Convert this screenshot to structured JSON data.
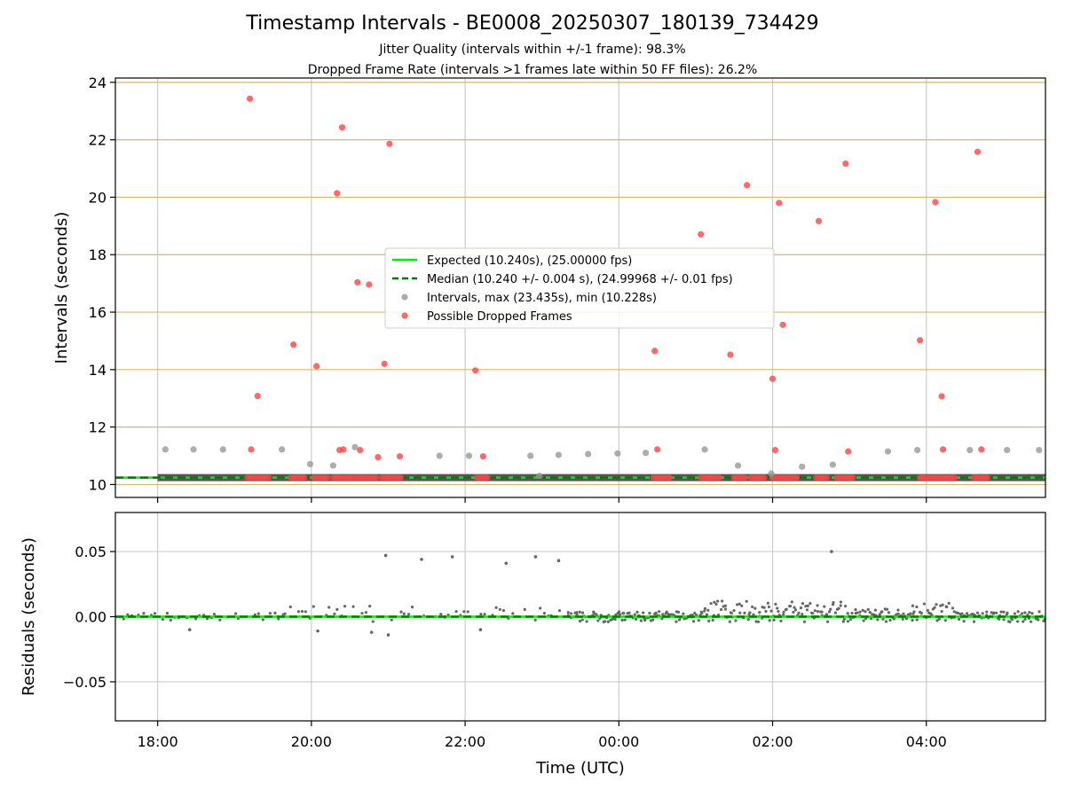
{
  "chart_data": {
    "title": "Timestamp Intervals - BE0008_20250307_180139_734429",
    "subtitle_lines": [
      "Jitter Quality (intervals within +/-1 frame): 98.3%",
      "Dropped Frame Rate (intervals >1 frames late within 50 FF files): 26.2%"
    ],
    "xlabel": "Time (UTC)",
    "xlim": [
      "17:27",
      "05:33"
    ],
    "x_ticks": [
      "18:00",
      "20:00",
      "22:00",
      "00:00",
      "02:00",
      "04:00"
    ],
    "colors": {
      "expected": "#00ee00",
      "median": "#007a00",
      "intervals": "#999999",
      "dropped": "#ff4444",
      "residuals": "#666666",
      "hgrid_top": "#d8b86a",
      "grid": "#cccccc"
    },
    "panels": [
      {
        "type": "scatter",
        "ylabel": "Intervals (seconds)",
        "ylim": [
          9.55,
          24.15
        ],
        "y_ticks": [
          10,
          12,
          14,
          16,
          18,
          20,
          22,
          24
        ],
        "y_tick_labels": [
          "10",
          "12",
          "14",
          "16",
          "18",
          "20",
          "22",
          "24"
        ],
        "legend_position": "center",
        "legend": [
          "Expected (10.240s), (25.00000 fps)",
          "Median (10.240 +/- 0.004 s), (24.99968 +/- 0.01 fps)",
          "Intervals, max (23.435s), min (10.228s)",
          "Possible Dropped Frames"
        ],
        "expected": 10.24,
        "median": 10.24,
        "intervals": [
          {
            "x": "18:06",
            "y": 11.22
          },
          {
            "x": "18:28",
            "y": 11.22
          },
          {
            "x": "18:51",
            "y": 11.22
          },
          {
            "x": "19:37",
            "y": 11.22
          },
          {
            "x": "19:59",
            "y": 10.71
          },
          {
            "x": "20:17",
            "y": 10.66
          },
          {
            "x": "20:34",
            "y": 11.3
          },
          {
            "x": "21:40",
            "y": 11.0
          },
          {
            "x": "22:03",
            "y": 11.0
          },
          {
            "x": "22:51",
            "y": 11.0
          },
          {
            "x": "22:58",
            "y": 10.3
          },
          {
            "x": "23:13",
            "y": 11.03
          },
          {
            "x": "23:36",
            "y": 11.06
          },
          {
            "x": "23:59",
            "y": 11.08
          },
          {
            "x": "00:21",
            "y": 11.1
          },
          {
            "x": "01:07",
            "y": 11.22
          },
          {
            "x": "01:33",
            "y": 10.66
          },
          {
            "x": "01:59",
            "y": 10.38
          },
          {
            "x": "02:23",
            "y": 10.62
          },
          {
            "x": "02:47",
            "y": 10.69
          },
          {
            "x": "03:30",
            "y": 11.15
          },
          {
            "x": "03:53",
            "y": 11.2
          },
          {
            "x": "04:34",
            "y": 11.2
          },
          {
            "x": "05:03",
            "y": 11.2
          },
          {
            "x": "05:28",
            "y": 11.2
          }
        ],
        "dropped": [
          {
            "x": "19:12",
            "y": 23.43
          },
          {
            "x": "19:18",
            "y": 13.08
          },
          {
            "x": "19:13",
            "y": 11.22
          },
          {
            "x": "19:46",
            "y": 14.87
          },
          {
            "x": "20:04",
            "y": 14.12
          },
          {
            "x": "20:20",
            "y": 20.14
          },
          {
            "x": "20:24",
            "y": 22.43
          },
          {
            "x": "20:22",
            "y": 11.2
          },
          {
            "x": "20:25",
            "y": 11.22
          },
          {
            "x": "20:36",
            "y": 17.04
          },
          {
            "x": "20:45",
            "y": 16.96
          },
          {
            "x": "20:38",
            "y": 11.2
          },
          {
            "x": "20:52",
            "y": 10.95
          },
          {
            "x": "20:57",
            "y": 14.2
          },
          {
            "x": "21:01",
            "y": 21.86
          },
          {
            "x": "21:09",
            "y": 10.98
          },
          {
            "x": "22:08",
            "y": 13.97
          },
          {
            "x": "22:14",
            "y": 10.98
          },
          {
            "x": "00:28",
            "y": 14.65
          },
          {
            "x": "00:30",
            "y": 11.22
          },
          {
            "x": "01:04",
            "y": 18.71
          },
          {
            "x": "01:27",
            "y": 14.52
          },
          {
            "x": "01:40",
            "y": 20.42
          },
          {
            "x": "02:00",
            "y": 13.68
          },
          {
            "x": "02:02",
            "y": 11.2
          },
          {
            "x": "02:05",
            "y": 19.8
          },
          {
            "x": "02:08",
            "y": 15.56
          },
          {
            "x": "02:36",
            "y": 19.17
          },
          {
            "x": "02:57",
            "y": 21.17
          },
          {
            "x": "02:59",
            "y": 11.15
          },
          {
            "x": "03:55",
            "y": 15.02
          },
          {
            "x": "04:07",
            "y": 19.83
          },
          {
            "x": "04:12",
            "y": 13.07
          },
          {
            "x": "04:13",
            "y": 11.22
          },
          {
            "x": "04:40",
            "y": 21.58
          },
          {
            "x": "04:43",
            "y": 11.22
          }
        ],
        "dropped_clusters": [
          [
            "19:10",
            "19:28"
          ],
          [
            "19:44",
            "19:56"
          ],
          [
            "20:02",
            "20:14"
          ],
          [
            "20:17",
            "20:32"
          ],
          [
            "20:34",
            "20:52"
          ],
          [
            "20:55",
            "21:10"
          ],
          [
            "22:09",
            "22:18"
          ],
          [
            "00:27",
            "00:40"
          ],
          [
            "01:04",
            "01:20"
          ],
          [
            "01:30",
            "01:40"
          ],
          [
            "01:43",
            "01:55"
          ],
          [
            "02:00",
            "02:20"
          ],
          [
            "02:34",
            "02:44"
          ],
          [
            "02:50",
            "03:03"
          ],
          [
            "03:55",
            "04:23"
          ],
          [
            "04:37",
            "04:48"
          ]
        ]
      },
      {
        "type": "scatter",
        "ylabel": "Residuals (seconds)",
        "ylim": [
          -0.08,
          0.08
        ],
        "y_ticks": [
          -0.05,
          0.0,
          0.05
        ],
        "y_tick_labels": [
          "−0.05",
          "0.00",
          "0.05"
        ],
        "outliers": [
          {
            "x": "20:58",
            "y": 0.047
          },
          {
            "x": "21:26",
            "y": 0.044
          },
          {
            "x": "21:50",
            "y": 0.046
          },
          {
            "x": "22:32",
            "y": 0.041
          },
          {
            "x": "22:55",
            "y": 0.046
          },
          {
            "x": "23:13",
            "y": 0.043
          },
          {
            "x": "02:46",
            "y": 0.05
          },
          {
            "x": "18:25",
            "y": -0.01
          },
          {
            "x": "20:05",
            "y": -0.011
          },
          {
            "x": "20:47",
            "y": -0.012
          },
          {
            "x": "21:00",
            "y": -0.014
          },
          {
            "x": "22:12",
            "y": -0.01
          }
        ],
        "level_segments": [
          {
            "from": "17:30",
            "to": "19:40",
            "level": 0.0,
            "spread": 0.003
          },
          {
            "from": "19:40",
            "to": "21:00",
            "level": 0.006,
            "spread": 0.004
          },
          {
            "from": "21:00",
            "to": "23:20",
            "level": 0.004,
            "spread": 0.004
          },
          {
            "from": "23:20",
            "to": "01:05",
            "level": 0.0,
            "spread": 0.004
          },
          {
            "from": "01:05",
            "to": "03:00",
            "level": 0.008,
            "spread": 0.004
          },
          {
            "from": "03:00",
            "to": "03:50",
            "level": 0.002,
            "spread": 0.004
          },
          {
            "from": "03:50",
            "to": "04:20",
            "level": 0.007,
            "spread": 0.004
          },
          {
            "from": "04:20",
            "to": "05:33",
            "level": 0.0,
            "spread": 0.004
          }
        ]
      }
    ]
  }
}
